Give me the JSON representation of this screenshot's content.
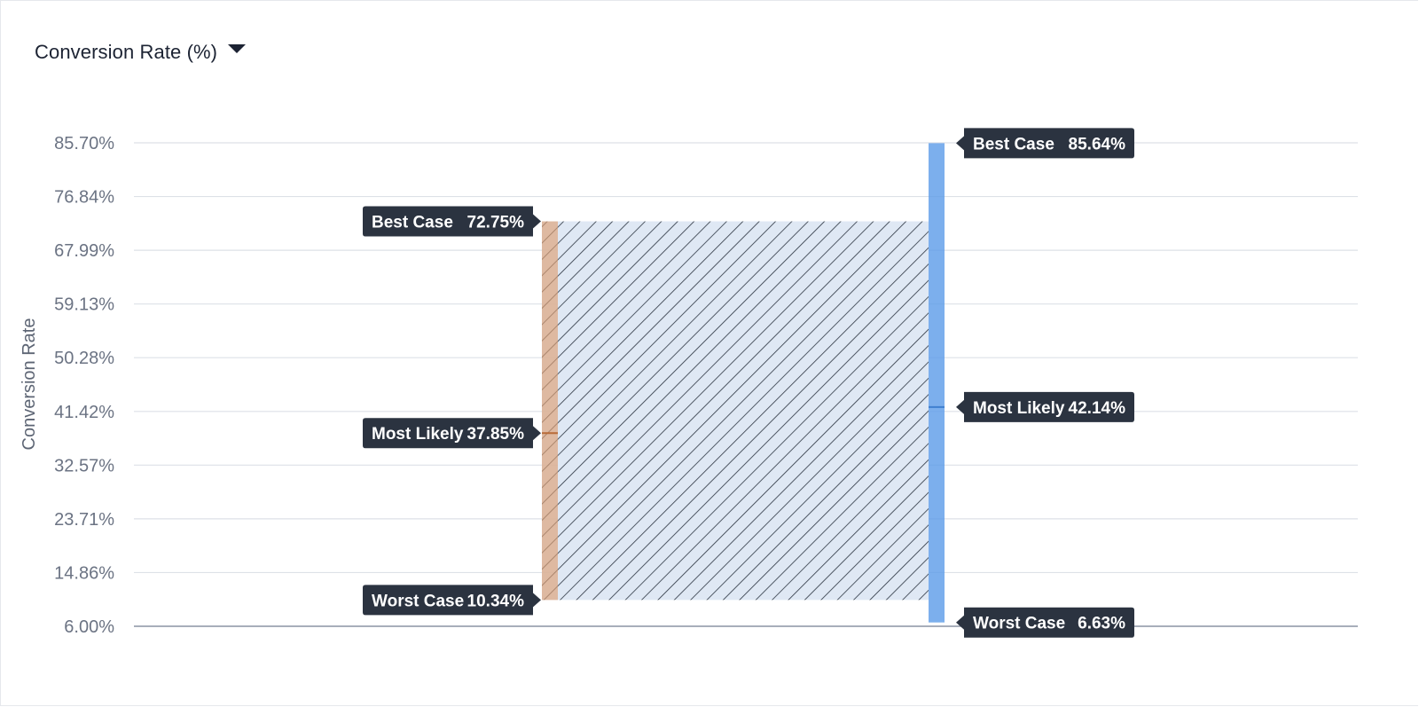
{
  "header": {
    "title": "Conversion Rate (%)",
    "dropdown_icon": "caret-down-icon"
  },
  "colors": {
    "grid": "#dde1e7",
    "axis": "#8b93a3",
    "series_a": "#d88f5c",
    "series_b": "#5b9be8",
    "hatch_fill": "#dfe8f4",
    "hatch_line": "#2b3441",
    "tooltip_bg": "#2b3340"
  },
  "chart_data": {
    "type": "range",
    "title": "",
    "xlabel": "",
    "ylabel": "Conversion Rate",
    "ylim": [
      6.0,
      85.7
    ],
    "y_ticks": [
      "85.70%",
      "76.84%",
      "67.99%",
      "59.13%",
      "50.28%",
      "41.42%",
      "32.57%",
      "23.71%",
      "14.86%",
      "6.00%"
    ],
    "y_tick_values": [
      85.7,
      76.84,
      67.99,
      59.13,
      50.28,
      41.42,
      32.57,
      23.71,
      14.86,
      6.0
    ],
    "grid": true,
    "legend": "none",
    "series": [
      {
        "best": 72.75,
        "most_likely": 37.85,
        "worst": 10.34,
        "labels": {
          "best": "Best Case",
          "most_likely": "Most Likely",
          "worst": "Worst Case"
        },
        "value_labels": {
          "best": "72.75%",
          "most_likely": "37.85%",
          "worst": "10.34%"
        }
      },
      {
        "best": 85.64,
        "most_likely": 42.14,
        "worst": 6.63,
        "labels": {
          "best": "Best Case",
          "most_likely": "Most Likely",
          "worst": "Worst Case"
        },
        "value_labels": {
          "best": "85.64%",
          "most_likely": "42.14%",
          "worst": "6.63%"
        }
      }
    ]
  }
}
